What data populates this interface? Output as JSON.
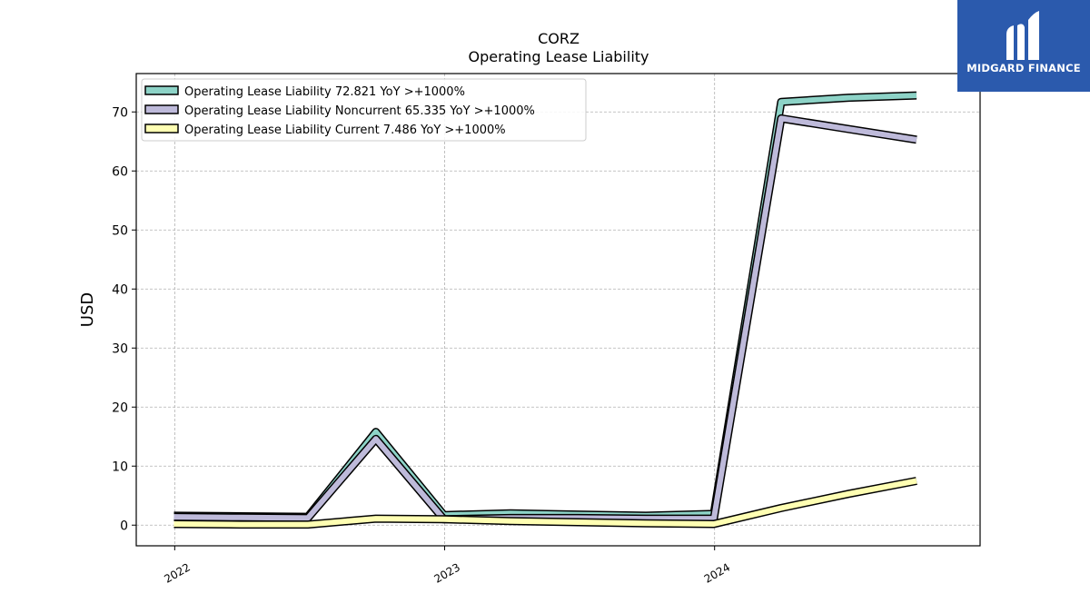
{
  "brand": {
    "name": "MIDGARD FINANCE",
    "bg_color": "#2b5aad"
  },
  "chart_data": {
    "type": "line",
    "title": "CORZ",
    "subtitle": "Operating Lease Liability",
    "ylabel": "USD",
    "xlabel": "",
    "ylim": [
      -3.5,
      76.5
    ],
    "xlim": [
      "2021-11-10",
      "2024-12-25"
    ],
    "x_ticks": [
      "2022",
      "2023",
      "2024"
    ],
    "y_ticks": [
      0,
      10,
      20,
      30,
      40,
      50,
      60,
      70
    ],
    "grid": true,
    "legend_position": "top-left",
    "series": [
      {
        "name": "Operating Lease Liability  72.821 YoY >+1000%",
        "color": "#8dd3c7",
        "x": [
          "2021-12-31",
          "2022-03-31",
          "2022-06-30",
          "2022-09-30",
          "2022-12-31",
          "2023-03-31",
          "2023-06-30",
          "2023-09-30",
          "2023-12-31",
          "2024-03-31",
          "2024-06-30",
          "2024-09-30"
        ],
        "values": [
          1.6,
          1.5,
          1.4,
          15.8,
          1.7,
          2.0,
          1.8,
          1.6,
          1.9,
          71.7,
          72.4,
          72.8
        ]
      },
      {
        "name": "Operating Lease Liability Noncurrent  65.335 YoY >+1000%",
        "color": "#bebada",
        "x": [
          "2021-12-31",
          "2022-03-31",
          "2022-06-30",
          "2022-09-30",
          "2022-12-31",
          "2023-03-31",
          "2023-06-30",
          "2023-09-30",
          "2023-12-31",
          "2024-03-31",
          "2024-06-30",
          "2024-09-30"
        ],
        "values": [
          1.4,
          1.3,
          1.2,
          14.6,
          1.0,
          1.2,
          1.2,
          1.1,
          1.1,
          68.9,
          67.1,
          65.3
        ]
      },
      {
        "name": "Operating Lease Liability Current  7.486 YoY >+1000%",
        "color": "#ffffb3",
        "x": [
          "2021-12-31",
          "2022-03-31",
          "2022-06-30",
          "2022-09-30",
          "2022-12-31",
          "2023-03-31",
          "2023-06-30",
          "2023-09-30",
          "2023-12-31",
          "2024-03-31",
          "2024-06-30",
          "2024-09-30"
        ],
        "values": [
          0.2,
          0.1,
          0.1,
          1.1,
          1.0,
          0.7,
          0.5,
          0.3,
          0.2,
          2.9,
          5.3,
          7.5
        ]
      }
    ]
  }
}
